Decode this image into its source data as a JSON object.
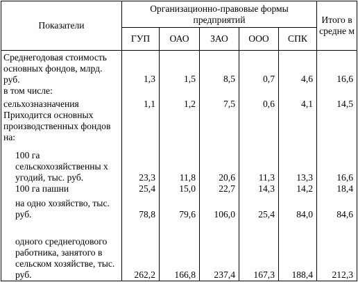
{
  "header": {
    "indicators": "Показатели",
    "forms_group": "Организационно-правовые формы предприятий",
    "forms": [
      "ГУП",
      "ОАО",
      "ЗАО",
      "ООО",
      "СПК"
    ],
    "total": "Итого в средне м"
  },
  "rows": [
    {
      "label": "Среднегодовая стоимость основных фондов, млрд. руб.\nв том числе:",
      "values": [
        "1,3",
        "1,5",
        "8,5",
        "0,7",
        "4,6",
        "16,6"
      ]
    },
    {
      "label": "сельхозназначения",
      "values": [
        "1,1",
        "1,2",
        "7,5",
        "0,6",
        "4,1",
        "14,5"
      ]
    },
    {
      "label": "Приходится основных производственных фондов на:",
      "values": [
        "",
        "",
        "",
        "",
        "",
        ""
      ]
    },
    {
      "label": "100 га сельскохозяйственны х угодий, тыс. руб.",
      "values": [
        "23,3",
        "11,8",
        "20,6",
        "11,3",
        "13,3",
        "16,6"
      ]
    },
    {
      "label": "100 га пашни",
      "values": [
        "25,4",
        "15,0",
        "22,7",
        "14,3",
        "14,2",
        "18,4"
      ]
    },
    {
      "label": "на одно хозяйство, тыс. руб.",
      "values": [
        "78,8",
        "79,6",
        "106,0",
        "25,4",
        "84,0",
        "84,6"
      ]
    },
    {
      "label": "одного среднегодового работника, занятого в сельском хозяйстве, тыс. руб.",
      "values": [
        "262,2",
        "166,8",
        "237,4",
        "167,3",
        "188,4",
        "212,3"
      ]
    }
  ]
}
